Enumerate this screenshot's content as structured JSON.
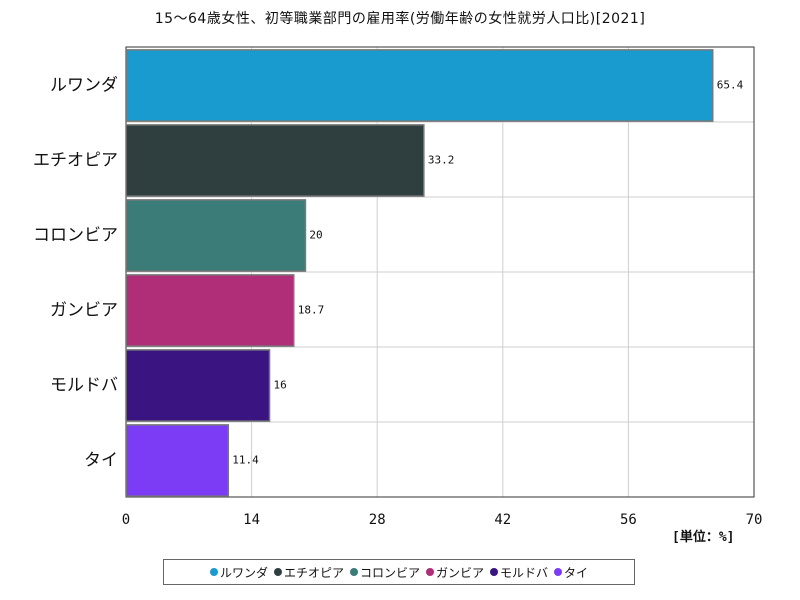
{
  "chart_data": {
    "type": "bar",
    "orientation": "horizontal",
    "title": "15～64歳女性、初等職業部門の雇用率(労働年齢の女性就労人口比)[2021]",
    "categories": [
      "ルワンダ",
      "エチオピア",
      "コロンビア",
      "ガンビア",
      "モルドバ",
      "タイ"
    ],
    "values": [
      65.4,
      33.2,
      20,
      18.7,
      16,
      11.4
    ],
    "value_labels": [
      "65.4",
      "33.2",
      "20",
      "18.7",
      "16",
      "11.4"
    ],
    "colors": [
      "#1a9bd0",
      "#2f3f3f",
      "#3c7c78",
      "#b02e78",
      "#3a1582",
      "#7c3cf5"
    ],
    "xlim": [
      0,
      70
    ],
    "xticks": [
      "0",
      "14",
      "28",
      "42",
      "56",
      "70"
    ],
    "unit_label": "[単位：%]",
    "grid": true,
    "legend_position": "bottom"
  }
}
